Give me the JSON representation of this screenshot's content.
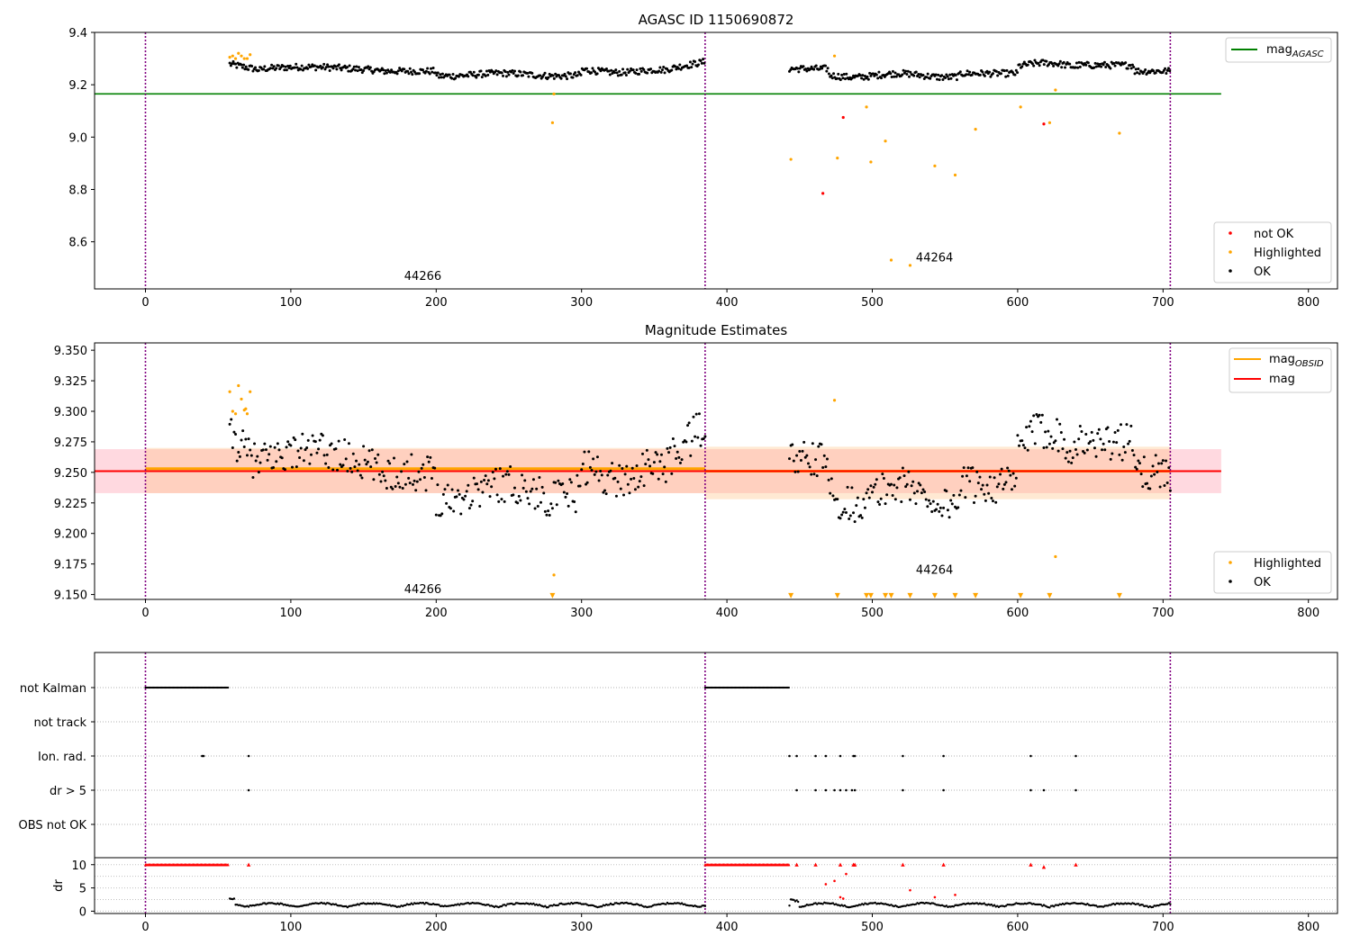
{
  "chart_data": [
    {
      "type": "scatter",
      "title": "AGASC ID 1150690872",
      "xlim": [
        -35,
        820
      ],
      "ylim": [
        8.42,
        9.4
      ],
      "x_ticks": [
        0,
        100,
        200,
        300,
        400,
        500,
        600,
        700,
        800
      ],
      "y_ticks": [
        8.6,
        8.8,
        9.0,
        9.2,
        9.4
      ],
      "y_tick_labels": [
        "8.6",
        "8.8",
        "9.0",
        "9.2",
        "9.4"
      ],
      "vlines_obs_boundaries": [
        0,
        385,
        705
      ],
      "annotations": [
        {
          "text": "44266",
          "x": 178,
          "y": 8.455
        },
        {
          "text": "44264",
          "x": 530,
          "y": 8.525
        }
      ],
      "hlines": [
        {
          "name": "mag_AGASC",
          "label_base": "mag",
          "label_sub": "AGASC",
          "y": 9.165,
          "x_range": [
            -35,
            740
          ],
          "color": "#008000"
        }
      ],
      "series": [
        {
          "name": "not OK",
          "color": "#ff0000",
          "points": [
            [
              466,
              8.785
            ],
            [
              480,
              9.075
            ],
            [
              618,
              9.05
            ]
          ]
        },
        {
          "name": "Highlighted",
          "color": "#ffa500",
          "points": [
            [
              58,
              9.305
            ],
            [
              60,
              9.31
            ],
            [
              62,
              9.3
            ],
            [
              64,
              9.32
            ],
            [
              66,
              9.31
            ],
            [
              68,
              9.3
            ],
            [
              70,
              9.3
            ],
            [
              72,
              9.315
            ],
            [
              280,
              9.055
            ],
            [
              281,
              9.165
            ],
            [
              444,
              8.915
            ],
            [
              474,
              9.31
            ],
            [
              476,
              8.92
            ],
            [
              496,
              9.115
            ],
            [
              499,
              8.905
            ],
            [
              509,
              8.985
            ],
            [
              513,
              8.53
            ],
            [
              526,
              8.51
            ],
            [
              543,
              8.89
            ],
            [
              557,
              8.855
            ],
            [
              571,
              9.03
            ],
            [
              602,
              9.115
            ],
            [
              622,
              9.055
            ],
            [
              626,
              9.18
            ],
            [
              670,
              9.015
            ]
          ]
        },
        {
          "name": "OK",
          "color": "#000000",
          "model": {
            "segments": [
              [
                58,
                385,
                0.8
              ],
              [
                443,
                705,
                0.8
              ]
            ],
            "baseline": 9.25,
            "base_offset": 0.002
          }
        }
      ],
      "legend": [
        {
          "label": "not OK",
          "color": "#ff0000",
          "marker": "dot"
        },
        {
          "label": "Highlighted",
          "color": "#ffa500",
          "marker": "dot"
        },
        {
          "label": "OK",
          "color": "#000000",
          "marker": "dot"
        }
      ],
      "legend_location": [
        "top-right",
        "bottom-right"
      ]
    },
    {
      "type": "scatter",
      "title": "Magnitude Estimates",
      "xlim": [
        -35,
        820
      ],
      "ylim": [
        9.146,
        9.356
      ],
      "x_ticks": [
        0,
        100,
        200,
        300,
        400,
        500,
        600,
        700,
        800
      ],
      "y_ticks": [
        9.15,
        9.175,
        9.2,
        9.225,
        9.25,
        9.275,
        9.3,
        9.325,
        9.35
      ],
      "y_tick_labels": [
        "9.150",
        "9.175",
        "9.200",
        "9.225",
        "9.250",
        "9.275",
        "9.300",
        "9.325",
        "9.350"
      ],
      "vlines_obs_boundaries": [
        0,
        385,
        705
      ],
      "annotations": [
        {
          "text": "44266",
          "x": 178,
          "y": 9.151
        },
        {
          "text": "44264",
          "x": 530,
          "y": 9.167
        }
      ],
      "bands": [
        {
          "x_range": [
            -35,
            740
          ],
          "y_range": [
            9.233,
            9.269
          ],
          "color": "#ffc0cb",
          "opacity": 0.6
        },
        {
          "x_range": [
            0,
            385
          ],
          "y_range": [
            9.233,
            9.27
          ],
          "color": "#ffc080",
          "opacity": 0.35
        },
        {
          "x_range": [
            385,
            705
          ],
          "y_range": [
            9.228,
            9.271
          ],
          "color": "#ffc080",
          "opacity": 0.35
        }
      ],
      "obsid_lines": [
        {
          "x_range": [
            0,
            385
          ],
          "y": 9.253,
          "color": "#ffa500"
        },
        {
          "x_range": [
            385,
            705
          ],
          "y": 9.251,
          "color": "#ffa500"
        }
      ],
      "mag_line": {
        "y": 9.251,
        "x_range": [
          -35,
          740
        ],
        "color": "#ff0000"
      },
      "series": [
        {
          "name": "Highlighted",
          "color": "#ffa500",
          "points": [
            [
              58,
              9.316
            ],
            [
              60,
              9.3
            ],
            [
              62,
              9.298
            ],
            [
              64,
              9.321
            ],
            [
              66,
              9.31
            ],
            [
              68,
              9.301
            ],
            [
              69,
              9.302
            ],
            [
              70,
              9.298
            ],
            [
              72,
              9.316
            ],
            [
              281,
              9.166
            ],
            [
              474,
              9.309
            ],
            [
              626,
              9.181
            ]
          ]
        },
        {
          "name": "OK",
          "color": "#000000",
          "model": {
            "segments": [
              [
                58,
                385,
                1.0
              ],
              [
                443,
                705,
                1.0
              ]
            ],
            "baseline": 9.25,
            "base_offset": 0.0
          }
        },
        {
          "name": "upper limit markers",
          "color": "#ffa500",
          "marker": "down-triangle",
          "points": [
            [
              280,
              9.149
            ],
            [
              444,
              9.149
            ],
            [
              476,
              9.149
            ],
            [
              496,
              9.149
            ],
            [
              499,
              9.149
            ],
            [
              509,
              9.149
            ],
            [
              513,
              9.149
            ],
            [
              526,
              9.149
            ],
            [
              543,
              9.149
            ],
            [
              557,
              9.149
            ],
            [
              571,
              9.149
            ],
            [
              602,
              9.149
            ],
            [
              622,
              9.149
            ],
            [
              670,
              9.149
            ]
          ]
        }
      ],
      "legend_top": [
        {
          "label_base": "mag",
          "label_sub": "OBSID",
          "color": "#ffa500",
          "marker": "line"
        },
        {
          "label_base": "mag",
          "label_sub": "",
          "color": "#ff0000",
          "marker": "line"
        }
      ],
      "legend_bottom": [
        {
          "label": "Highlighted",
          "color": "#ffa500",
          "marker": "dot"
        },
        {
          "label": "OK",
          "color": "#000000",
          "marker": "dot"
        }
      ]
    },
    {
      "type": "scatter",
      "title": "",
      "xlim": [
        -35,
        820
      ],
      "x_ticks": [
        0,
        100,
        200,
        300,
        400,
        500,
        600,
        700,
        800
      ],
      "vlines_obs_boundaries": [
        0,
        385,
        705
      ],
      "flag_rows": [
        {
          "label": "not Kalman",
          "ranges": [
            [
              0,
              57
            ],
            [
              385,
              443
            ]
          ],
          "points": []
        },
        {
          "label": "not track",
          "ranges": [],
          "points": []
        },
        {
          "label": "Ion. rad.",
          "ranges": [],
          "points": [
            39,
            40,
            71,
            443,
            448,
            461,
            468,
            478,
            487,
            488,
            521,
            549,
            609,
            640
          ]
        },
        {
          "label": "dr > 5",
          "ranges": [],
          "points": [
            71,
            448,
            461,
            468,
            474,
            478,
            482,
            486,
            488,
            521,
            549,
            609,
            618,
            640
          ]
        },
        {
          "label": "OBS not OK",
          "ranges": [],
          "points": []
        }
      ]
    },
    {
      "type": "scatter",
      "title": "",
      "ylabel": "dr",
      "xlim": [
        -35,
        820
      ],
      "ylim": [
        -0.5,
        11.5
      ],
      "x_ticks": [
        0,
        100,
        200,
        300,
        400,
        500,
        600,
        700,
        800
      ],
      "y_ticks": [
        0,
        5,
        10
      ],
      "y_tick_labels": [
        "0",
        "5",
        "10"
      ],
      "vlines_obs_boundaries": [
        0,
        385,
        705
      ],
      "series": [
        {
          "name": "dr capped",
          "color": "#ff0000",
          "marker": "triangle",
          "ranges": [
            [
              0,
              57
            ],
            [
              385,
              443
            ]
          ],
          "points": [
            [
              71,
              10
            ],
            [
              448,
              10
            ],
            [
              461,
              10
            ],
            [
              478,
              10
            ],
            [
              487,
              10
            ],
            [
              488,
              10
            ],
            [
              521,
              10
            ],
            [
              549,
              10
            ],
            [
              609,
              10
            ],
            [
              618,
              9.5
            ],
            [
              640,
              10
            ]
          ]
        },
        {
          "name": "dr high",
          "color": "#ff0000",
          "marker": "dot",
          "points": [
            [
              468,
              5.8
            ],
            [
              474,
              6.5
            ],
            [
              478,
              3.0
            ],
            [
              480,
              2.7
            ],
            [
              482,
              8.0
            ],
            [
              526,
              4.5
            ],
            [
              543,
              3.0
            ],
            [
              557,
              3.5
            ]
          ]
        },
        {
          "name": "dr",
          "color": "#000000",
          "marker": "dot",
          "model": {
            "segments": [
              [
                58,
                385
              ],
              [
                443,
                705
              ]
            ],
            "typical": [
              0.3,
              2.5
            ]
          }
        }
      ]
    }
  ]
}
